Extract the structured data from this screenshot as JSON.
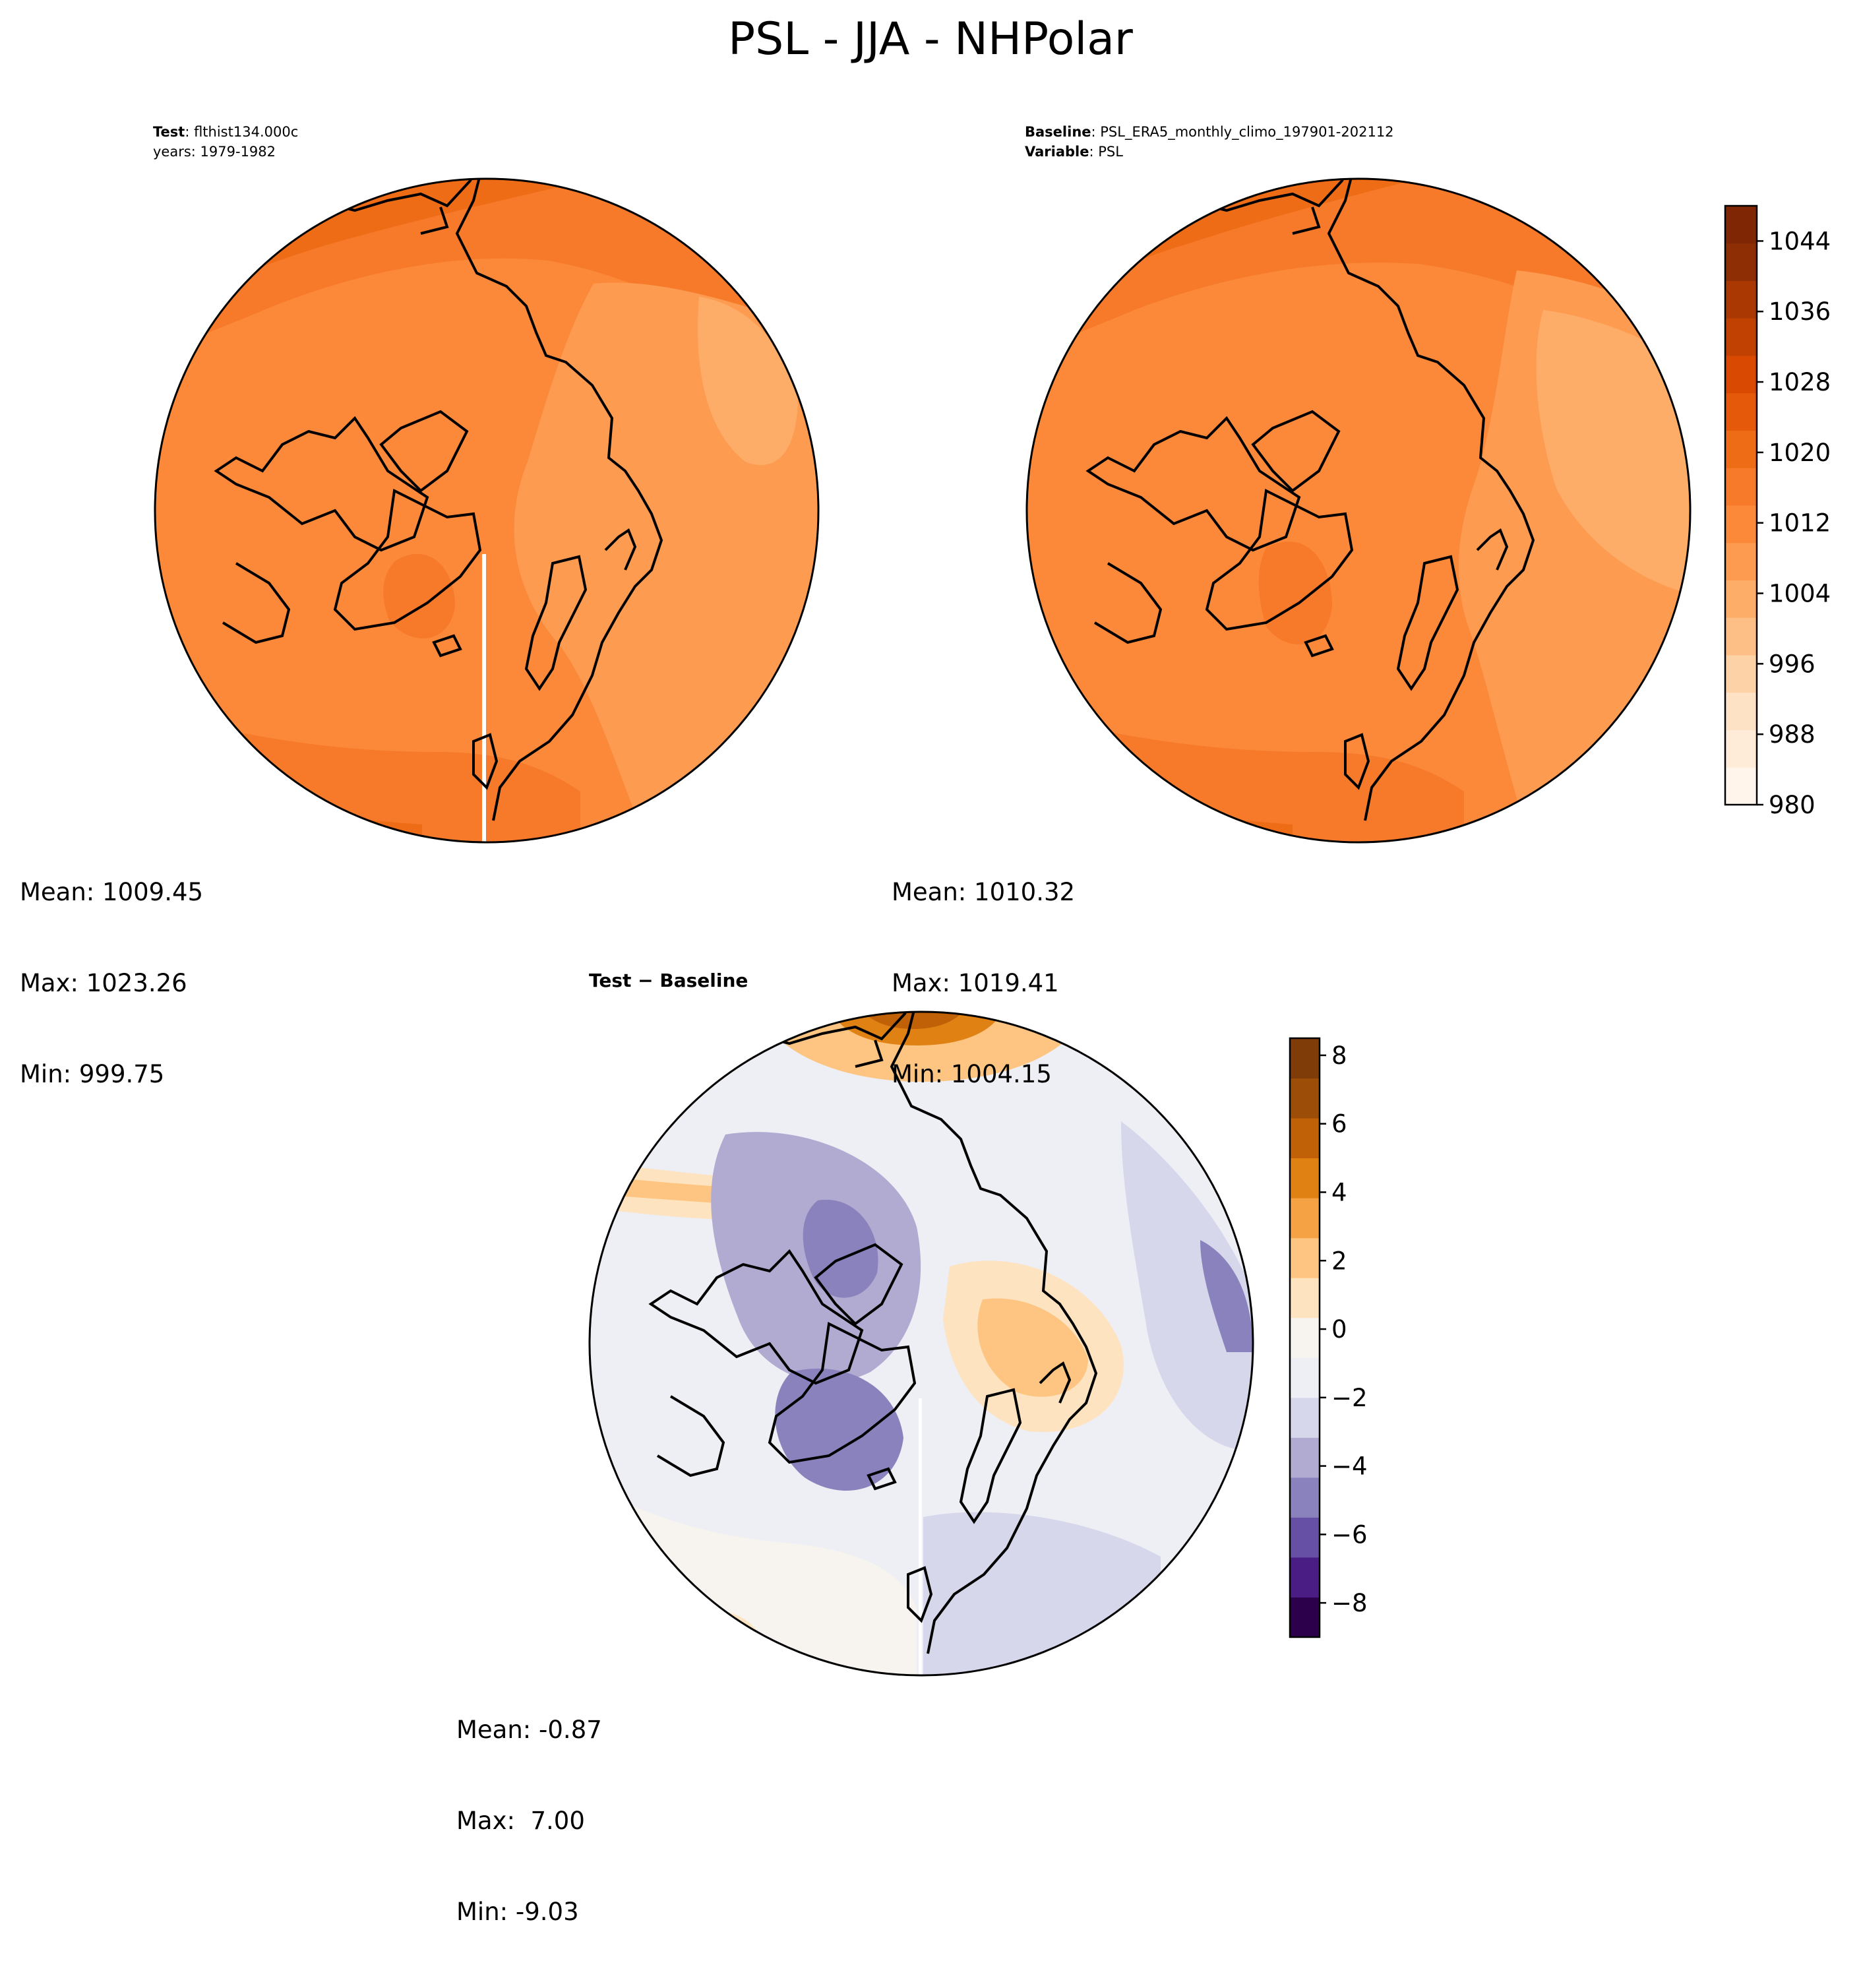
{
  "title": "PSL - JJA - NHPolar",
  "panels": {
    "test": {
      "header": [
        {
          "bold": "Test",
          "rest": ": flthist134.000c"
        },
        {
          "bold": "",
          "rest": "years: 1979-1982"
        }
      ],
      "stats": {
        "mean": "Mean: 1009.45",
        "max": "Max: 1023.26",
        "min": "Min: 999.75"
      }
    },
    "baseline": {
      "header": [
        {
          "bold": "Baseline",
          "rest": ": PSL_ERA5_monthly_climo_197901-202112"
        },
        {
          "bold": "Variable",
          "rest": ": PSL"
        }
      ],
      "stats": {
        "mean": "Mean: 1010.32",
        "max": "Max: 1019.41",
        "min": "Min: 1004.15"
      }
    },
    "diff": {
      "header": [
        {
          "bold": "Test − Baseline",
          "rest": ""
        }
      ],
      "stats": {
        "mean": "Mean: -0.87",
        "max": "Max:  7.00",
        "min": "Min: -9.03"
      }
    }
  },
  "colors": {
    "psl_scale": [
      "#fff5eb",
      "#feecd9",
      "#fee2c6",
      "#fdd2a6",
      "#fdbf86",
      "#fdad68",
      "#fd9b51",
      "#fb8939",
      "#f67a2a",
      "#ef6c17",
      "#e55a0a",
      "#d94901",
      "#c14102",
      "#a93803",
      "#8e2e04",
      "#7f2704"
    ],
    "diff_scale": [
      "#2d004b",
      "#4a1d84",
      "#6650a5",
      "#8a82bc",
      "#b1abd2",
      "#d6d7eb",
      "#eeeef5",
      "#f7f4ef",
      "#fde3c0",
      "#fdc581",
      "#f4a244",
      "#e08114",
      "#c06108",
      "#9c4d07",
      "#7f3b08"
    ],
    "coastline": "#000000"
  },
  "chart_data": [
    {
      "type": "heatmap",
      "projection": "North Polar Stereographic",
      "colormap": "Oranges",
      "colorbar_ticks": [
        980,
        988,
        996,
        1004,
        1012,
        1020,
        1028,
        1036,
        1044
      ],
      "colorbar_range": [
        980,
        1048
      ],
      "mean": 1009.45,
      "max": 1023.26,
      "min": 999.75
    },
    {
      "type": "heatmap",
      "projection": "North Polar Stereographic",
      "colormap": "Oranges",
      "colorbar_ticks": [
        980,
        988,
        996,
        1004,
        1012,
        1020,
        1028,
        1036,
        1044
      ],
      "colorbar_range": [
        980,
        1048
      ],
      "mean": 1010.32,
      "max": 1019.41,
      "min": 1004.15
    },
    {
      "type": "heatmap",
      "projection": "North Polar Stereographic",
      "colormap": "PuOr_r",
      "colorbar_ticks": [
        -8,
        -6,
        -4,
        -2,
        0,
        2,
        4,
        6,
        8
      ],
      "colorbar_range": [
        -9,
        8.5
      ],
      "mean": -0.87,
      "max": 7.0,
      "min": -9.03
    }
  ],
  "colorbar_labels": {
    "psl": [
      "980",
      "988",
      "996",
      "1004",
      "1012",
      "1020",
      "1028",
      "1036",
      "1044"
    ],
    "diff": [
      "−8",
      "−6",
      "−4",
      "−2",
      "0",
      "2",
      "4",
      "6",
      "8"
    ]
  }
}
